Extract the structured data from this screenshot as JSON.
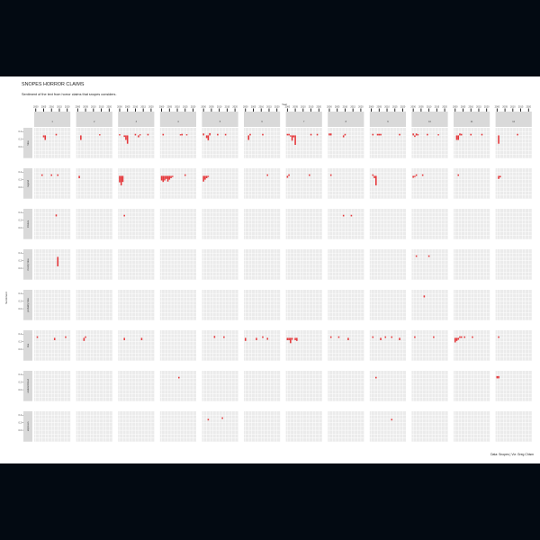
{
  "chart_data": {
    "type": "bar",
    "title": "SNOPES HORROR CLAIMS",
    "subtitle": "Sentiment of the text from horror claims that snopes considers.",
    "xlabel": "Year",
    "ylabel": "Sentiment",
    "caption": "Data: Snopes | Viz: Greg Chism",
    "x_tick_labels": [
      "2000",
      "2005",
      "2010",
      "2015",
      "2020"
    ],
    "y_tick_labels": [
      "0.4",
      "0.2",
      "0.0"
    ],
    "ylim": [
      -0.3,
      0.5
    ],
    "bar_color": "#e5383b",
    "panel_background": "#ebebeb",
    "strip_background": "#d9d9d9",
    "columns": [
      "1",
      "2",
      "3",
      "4",
      "5",
      "6",
      "7",
      "8",
      "9",
      "10",
      "11",
      "12"
    ],
    "rows": [
      "false",
      "legend",
      "mixture",
      "mostly false",
      "probably false",
      "true",
      "undetermined",
      "unproven"
    ],
    "bars": [
      {
        "row": "false",
        "col": "1",
        "year": 2005,
        "value": -0.05
      },
      {
        "row": "false",
        "col": "1",
        "year": 2006,
        "value": -0.12
      },
      {
        "row": "false",
        "col": "1",
        "year": 2013,
        "value": 0.04
      },
      {
        "row": "false",
        "col": "2",
        "year": 2002,
        "value": -0.12
      },
      {
        "row": "false",
        "col": "2",
        "year": 2014,
        "value": 0.03
      },
      {
        "row": "false",
        "col": "3",
        "year": 2000,
        "value": 0.03
      },
      {
        "row": "false",
        "col": "3",
        "year": 2003,
        "value": -0.04
      },
      {
        "row": "false",
        "col": "3",
        "year": 2004,
        "value": -0.12
      },
      {
        "row": "false",
        "col": "3",
        "year": 2005,
        "value": -0.22
      },
      {
        "row": "false",
        "col": "3",
        "year": 2010,
        "value": 0.04
      },
      {
        "row": "false",
        "col": "3",
        "year": 2012,
        "value": -0.05
      },
      {
        "row": "false",
        "col": "3",
        "year": 2013,
        "value": 0.03
      },
      {
        "row": "false",
        "col": "3",
        "year": 2018,
        "value": 0.04
      },
      {
        "row": "false",
        "col": "4",
        "year": 2001,
        "value": 0.04
      },
      {
        "row": "false",
        "col": "4",
        "year": 2012,
        "value": 0.03
      },
      {
        "row": "false",
        "col": "4",
        "year": 2013,
        "value": 0.04
      },
      {
        "row": "false",
        "col": "4",
        "year": 2016,
        "value": 0.03
      },
      {
        "row": "false",
        "col": "5",
        "year": 2000,
        "value": 0.05
      },
      {
        "row": "false",
        "col": "5",
        "year": 2002,
        "value": -0.07
      },
      {
        "row": "false",
        "col": "5",
        "year": 2003,
        "value": -0.13
      },
      {
        "row": "false",
        "col": "5",
        "year": 2004,
        "value": 0.06
      },
      {
        "row": "false",
        "col": "5",
        "year": 2009,
        "value": 0.04
      },
      {
        "row": "false",
        "col": "5",
        "year": 2014,
        "value": 0.04
      },
      {
        "row": "false",
        "col": "6",
        "year": 2002,
        "value": -0.12
      },
      {
        "row": "false",
        "col": "6",
        "year": 2003,
        "value": 0.04
      },
      {
        "row": "false",
        "col": "6",
        "year": 2011,
        "value": 0.04
      },
      {
        "row": "false",
        "col": "7",
        "year": 2000,
        "value": 0.04
      },
      {
        "row": "false",
        "col": "7",
        "year": 2001,
        "value": 0.04
      },
      {
        "row": "false",
        "col": "7",
        "year": 2002,
        "value": -0.03
      },
      {
        "row": "false",
        "col": "7",
        "year": 2003,
        "value": -0.14
      },
      {
        "row": "false",
        "col": "7",
        "year": 2004,
        "value": -0.05
      },
      {
        "row": "false",
        "col": "7",
        "year": 2005,
        "value": -0.25
      },
      {
        "row": "false",
        "col": "7",
        "year": 2015,
        "value": 0.04
      },
      {
        "row": "false",
        "col": "7",
        "year": 2019,
        "value": 0.04
      },
      {
        "row": "false",
        "col": "8",
        "year": 2000,
        "value": 0.05
      },
      {
        "row": "false",
        "col": "8",
        "year": 2001,
        "value": 0.05
      },
      {
        "row": "false",
        "col": "8",
        "year": 2009,
        "value": -0.05
      },
      {
        "row": "false",
        "col": "8",
        "year": 2010,
        "value": 0.04
      },
      {
        "row": "false",
        "col": "9",
        "year": 2001,
        "value": 0.04
      },
      {
        "row": "false",
        "col": "9",
        "year": 2004,
        "value": 0.04
      },
      {
        "row": "false",
        "col": "9",
        "year": 2005,
        "value": 0.04
      },
      {
        "row": "false",
        "col": "9",
        "year": 2006,
        "value": 0.04
      },
      {
        "row": "false",
        "col": "9",
        "year": 2018,
        "value": 0.04
      },
      {
        "row": "false",
        "col": "10",
        "year": 2000,
        "value": 0.05
      },
      {
        "row": "false",
        "col": "10",
        "year": 2001,
        "value": -0.04
      },
      {
        "row": "false",
        "col": "10",
        "year": 2002,
        "value": 0.05
      },
      {
        "row": "false",
        "col": "10",
        "year": 2003,
        "value": 0.03
      },
      {
        "row": "false",
        "col": "10",
        "year": 2009,
        "value": 0.04
      },
      {
        "row": "false",
        "col": "10",
        "year": 2016,
        "value": 0.03
      },
      {
        "row": "false",
        "col": "11",
        "year": 2001,
        "value": -0.12
      },
      {
        "row": "false",
        "col": "11",
        "year": 2002,
        "value": -0.12
      },
      {
        "row": "false",
        "col": "11",
        "year": 2003,
        "value": 0.05
      },
      {
        "row": "false",
        "col": "11",
        "year": 2004,
        "value": 0.04
      },
      {
        "row": "false",
        "col": "11",
        "year": 2010,
        "value": 0.04
      },
      {
        "row": "false",
        "col": "11",
        "year": 2017,
        "value": 0.04
      },
      {
        "row": "false",
        "col": "12",
        "year": 2001,
        "value": -0.22
      },
      {
        "row": "false",
        "col": "12",
        "year": 2013,
        "value": 0.04
      },
      {
        "row": "legend",
        "col": "1",
        "year": 2004,
        "value": 0.04
      },
      {
        "row": "legend",
        "col": "1",
        "year": 2010,
        "value": 0.04
      },
      {
        "row": "legend",
        "col": "1",
        "year": 2014,
        "value": 0.04
      },
      {
        "row": "legend",
        "col": "2",
        "year": 2001,
        "value": -0.06
      },
      {
        "row": "legend",
        "col": "3",
        "year": 2000,
        "value": -0.17
      },
      {
        "row": "legend",
        "col": "3",
        "year": 2001,
        "value": -0.25
      },
      {
        "row": "legend",
        "col": "3",
        "year": 2002,
        "value": -0.16
      },
      {
        "row": "legend",
        "col": "4",
        "year": 2000,
        "value": -0.12
      },
      {
        "row": "legend",
        "col": "4",
        "year": 2001,
        "value": -0.16
      },
      {
        "row": "legend",
        "col": "4",
        "year": 2002,
        "value": -0.12
      },
      {
        "row": "legend",
        "col": "4",
        "year": 2003,
        "value": -0.08
      },
      {
        "row": "legend",
        "col": "4",
        "year": 2004,
        "value": -0.15
      },
      {
        "row": "legend",
        "col": "4",
        "year": 2005,
        "value": -0.1
      },
      {
        "row": "legend",
        "col": "4",
        "year": 2006,
        "value": -0.06
      },
      {
        "row": "legend",
        "col": "4",
        "year": 2007,
        "value": -0.03
      },
      {
        "row": "legend",
        "col": "4",
        "year": 2015,
        "value": 0.04
      },
      {
        "row": "legend",
        "col": "5",
        "year": 2000,
        "value": -0.15
      },
      {
        "row": "legend",
        "col": "5",
        "year": 2001,
        "value": -0.1
      },
      {
        "row": "legend",
        "col": "5",
        "year": 2002,
        "value": -0.06
      },
      {
        "row": "legend",
        "col": "5",
        "year": 2003,
        "value": -0.03
      },
      {
        "row": "legend",
        "col": "6",
        "year": 2014,
        "value": 0.04
      },
      {
        "row": "legend",
        "col": "7",
        "year": 2000,
        "value": -0.05
      },
      {
        "row": "legend",
        "col": "7",
        "year": 2001,
        "value": 0.04
      },
      {
        "row": "legend",
        "col": "7",
        "year": 2014,
        "value": 0.04
      },
      {
        "row": "legend",
        "col": "8",
        "year": 2001,
        "value": 0.04
      },
      {
        "row": "legend",
        "col": "9",
        "year": 2001,
        "value": 0.04
      },
      {
        "row": "legend",
        "col": "9",
        "year": 2002,
        "value": -0.06
      },
      {
        "row": "legend",
        "col": "9",
        "year": 2003,
        "value": -0.25
      },
      {
        "row": "legend",
        "col": "10",
        "year": 2000,
        "value": -0.05
      },
      {
        "row": "legend",
        "col": "10",
        "year": 2001,
        "value": -0.03
      },
      {
        "row": "legend",
        "col": "10",
        "year": 2002,
        "value": 0.04
      },
      {
        "row": "legend",
        "col": "10",
        "year": 2006,
        "value": 0.04
      },
      {
        "row": "legend",
        "col": "11",
        "year": 2002,
        "value": 0.04
      },
      {
        "row": "legend",
        "col": "12",
        "year": 2001,
        "value": -0.08
      },
      {
        "row": "legend",
        "col": "12",
        "year": 2002,
        "value": -0.04
      },
      {
        "row": "mixture",
        "col": "1",
        "year": 2013,
        "value": 0.05
      },
      {
        "row": "mixture",
        "col": "3",
        "year": 2003,
        "value": 0.04
      },
      {
        "row": "mixture",
        "col": "8",
        "year": 2009,
        "value": 0.04
      },
      {
        "row": "mixture",
        "col": "8",
        "year": 2014,
        "value": 0.04
      },
      {
        "row": "mostly false",
        "col": "1",
        "year": 2014,
        "value": -0.25
      },
      {
        "row": "mostly false",
        "col": "10",
        "year": 2002,
        "value": 0.04
      },
      {
        "row": "mostly false",
        "col": "10",
        "year": 2010,
        "value": 0.04
      },
      {
        "row": "probably false",
        "col": "10",
        "year": 2007,
        "value": 0.05
      },
      {
        "row": "true",
        "col": "1",
        "year": 2001,
        "value": 0.04
      },
      {
        "row": "true",
        "col": "1",
        "year": 2012,
        "value": -0.06
      },
      {
        "row": "true",
        "col": "1",
        "year": 2019,
        "value": 0.04
      },
      {
        "row": "true",
        "col": "2",
        "year": 2004,
        "value": -0.08
      },
      {
        "row": "true",
        "col": "2",
        "year": 2005,
        "value": 0.04
      },
      {
        "row": "true",
        "col": "3",
        "year": 2003,
        "value": -0.06
      },
      {
        "row": "true",
        "col": "3",
        "year": 2014,
        "value": -0.06
      },
      {
        "row": "true",
        "col": "5",
        "year": 2007,
        "value": 0.05
      },
      {
        "row": "true",
        "col": "5",
        "year": 2013,
        "value": 0.04
      },
      {
        "row": "true",
        "col": "6",
        "year": 2000,
        "value": -0.08
      },
      {
        "row": "true",
        "col": "6",
        "year": 2007,
        "value": -0.06
      },
      {
        "row": "true",
        "col": "6",
        "year": 2011,
        "value": 0.04
      },
      {
        "row": "true",
        "col": "6",
        "year": 2014,
        "value": -0.05
      },
      {
        "row": "true",
        "col": "7",
        "year": 2000,
        "value": -0.06
      },
      {
        "row": "true",
        "col": "7",
        "year": 2001,
        "value": -0.06
      },
      {
        "row": "true",
        "col": "7",
        "year": 2002,
        "value": -0.14
      },
      {
        "row": "true",
        "col": "7",
        "year": 2003,
        "value": -0.05
      },
      {
        "row": "true",
        "col": "7",
        "year": 2005,
        "value": -0.06
      },
      {
        "row": "true",
        "col": "7",
        "year": 2006,
        "value": -0.08
      },
      {
        "row": "true",
        "col": "8",
        "year": 2001,
        "value": 0.04
      },
      {
        "row": "true",
        "col": "8",
        "year": 2006,
        "value": 0.04
      },
      {
        "row": "true",
        "col": "8",
        "year": 2012,
        "value": -0.06
      },
      {
        "row": "true",
        "col": "9",
        "year": 2001,
        "value": 0.04
      },
      {
        "row": "true",
        "col": "9",
        "year": 2006,
        "value": -0.06
      },
      {
        "row": "true",
        "col": "9",
        "year": 2009,
        "value": 0.04
      },
      {
        "row": "true",
        "col": "9",
        "year": 2013,
        "value": 0.04
      },
      {
        "row": "true",
        "col": "9",
        "year": 2018,
        "value": -0.06
      },
      {
        "row": "true",
        "col": "10",
        "year": 2001,
        "value": 0.04
      },
      {
        "row": "true",
        "col": "10",
        "year": 2013,
        "value": 0.04
      },
      {
        "row": "true",
        "col": "11",
        "year": 2000,
        "value": -0.12
      },
      {
        "row": "true",
        "col": "11",
        "year": 2001,
        "value": -0.08
      },
      {
        "row": "true",
        "col": "11",
        "year": 2002,
        "value": -0.05
      },
      {
        "row": "true",
        "col": "11",
        "year": 2003,
        "value": 0.04
      },
      {
        "row": "true",
        "col": "11",
        "year": 2004,
        "value": 0.04
      },
      {
        "row": "true",
        "col": "11",
        "year": 2006,
        "value": 0.04
      },
      {
        "row": "true",
        "col": "11",
        "year": 2011,
        "value": 0.04
      },
      {
        "row": "true",
        "col": "12",
        "year": 2001,
        "value": 0.04
      },
      {
        "row": "undetermined",
        "col": "4",
        "year": 2011,
        "value": 0.04
      },
      {
        "row": "undetermined",
        "col": "9",
        "year": 2003,
        "value": 0.04
      },
      {
        "row": "undetermined",
        "col": "12",
        "year": 2000,
        "value": 0.06
      },
      {
        "row": "undetermined",
        "col": "12",
        "year": 2001,
        "value": 0.06
      },
      {
        "row": "unproven",
        "col": "5",
        "year": 2003,
        "value": -0.04
      },
      {
        "row": "unproven",
        "col": "5",
        "year": 2012,
        "value": 0.04
      },
      {
        "row": "unproven",
        "col": "9",
        "year": 2013,
        "value": -0.04
      }
    ]
  }
}
